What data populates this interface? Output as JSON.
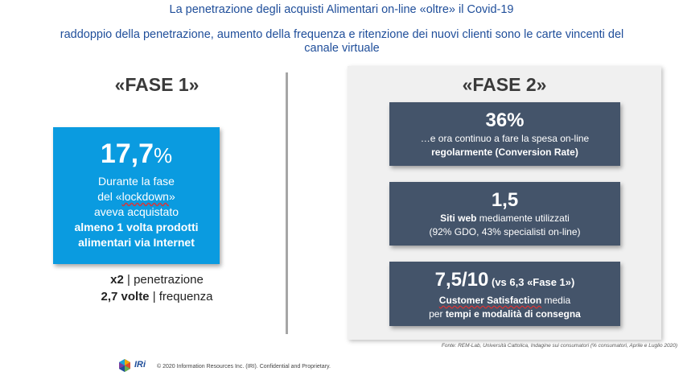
{
  "title": "La penetrazione degli acquisti Alimentari on-line «oltre» il Covid-19",
  "subtitle": "raddoppio della penetrazione, aumento della frequenza e ritenzione dei nuovi clienti sono le carte vincenti del canale virtuale",
  "phase1": {
    "label": "«FASE 1»",
    "card": {
      "value": "17,7",
      "unit": "%",
      "line1": "Durante la fase",
      "line2a": "del «",
      "line2b": "lockdown",
      "line2c": "»",
      "line3": "aveva acquistato",
      "line4": "almeno 1 volta prodotti",
      "line5": "alimentari via Internet"
    },
    "stats": {
      "s1_bold": "x2",
      "s1_rest": " | penetrazione",
      "s2_bold": "2,7 volte",
      "s2_rest": " | frequenza"
    }
  },
  "phase2": {
    "label": "«FASE 2»",
    "card1": {
      "value": "36%",
      "line1": "…e ora continuo a fare la spesa on-line",
      "line2": "regolarmente (Conversion Rate)"
    },
    "card2": {
      "value": "1,5",
      "line1_bold": "Siti web",
      "line1_rest": " mediamente utilizzati",
      "line2": "(92% GDO, 43% specialisti on-line)"
    },
    "card3": {
      "value": "7,5/10",
      "value_note": " (vs 6,3 «Fase 1»)",
      "line1_bold": "Customer Satisfaction",
      "line1_rest": " media",
      "line2_pre": "per ",
      "line2_bold": "tempi e modalità di consegna"
    }
  },
  "source": "Fonte: REM-Lab, Università Cattolica, Indagine sui consumatori (% consumatori, Aprile e Luglio 2020)",
  "footer": {
    "logo_text": "IRi",
    "copyright": "© 2020 Information Resources Inc. (IRI). Confidential and Proprietary."
  }
}
